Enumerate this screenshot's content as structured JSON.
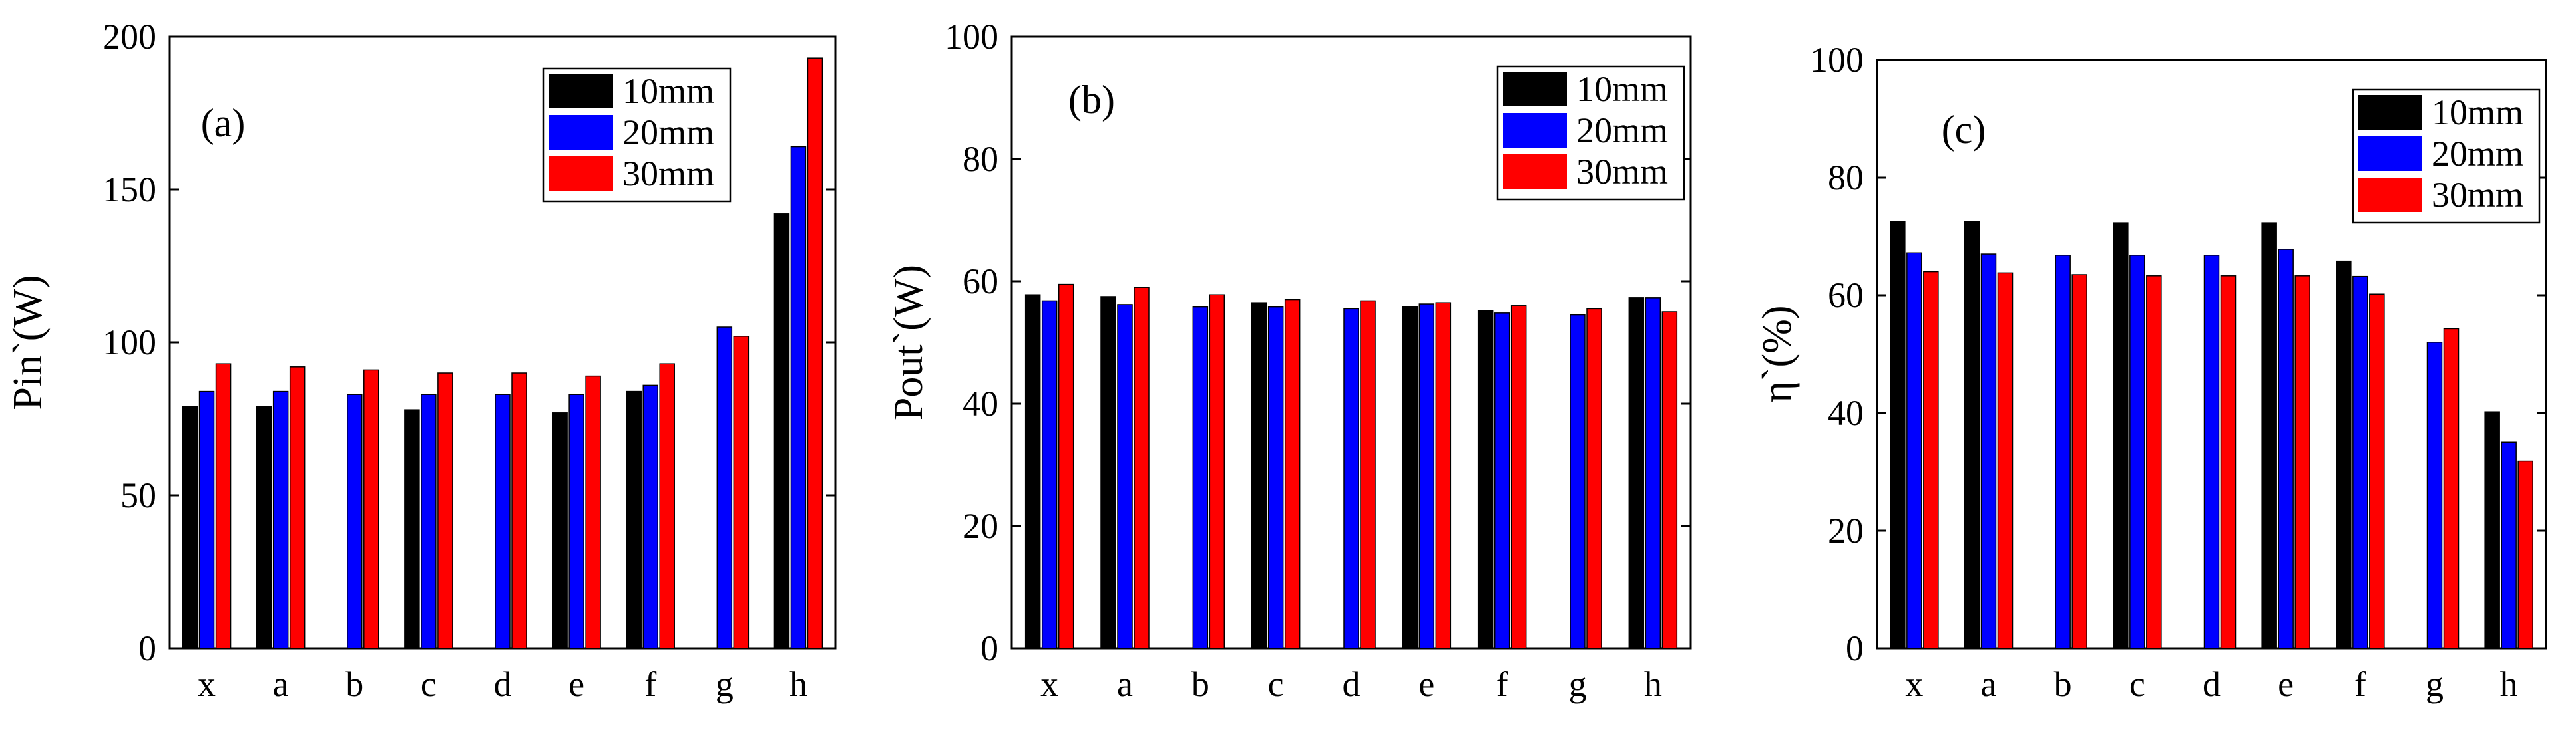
{
  "chart_data": [
    {
      "type": "bar",
      "panel_label": "(a)",
      "ylabel": "Pin`(W)",
      "ylim": [
        0,
        200
      ],
      "yticks": [
        0,
        50,
        100,
        150,
        200
      ],
      "categories": [
        "x",
        "a",
        "b",
        "c",
        "d",
        "e",
        "f",
        "g",
        "h"
      ],
      "series": [
        {
          "name": "10mm",
          "color": "#000000",
          "values": [
            79,
            79,
            null,
            78,
            null,
            77,
            84,
            null,
            142
          ]
        },
        {
          "name": "20mm",
          "color": "#0000ff",
          "values": [
            84,
            84,
            83,
            83,
            83,
            83,
            86,
            105,
            164
          ]
        },
        {
          "name": "30mm",
          "color": "#ff0000",
          "values": [
            93,
            92,
            91,
            90,
            90,
            89,
            93,
            102,
            193
          ]
        }
      ],
      "legend_position": "top-right",
      "legend": [
        "10mm",
        "20mm",
        "30mm"
      ]
    },
    {
      "type": "bar",
      "panel_label": "(b)",
      "ylabel": "Pout`(W)",
      "ylim": [
        0,
        100
      ],
      "yticks": [
        0,
        20,
        40,
        60,
        80,
        100
      ],
      "categories": [
        "x",
        "a",
        "b",
        "c",
        "d",
        "e",
        "f",
        "g",
        "h"
      ],
      "series": [
        {
          "name": "10mm",
          "color": "#000000",
          "values": [
            57.8,
            57.5,
            null,
            56.5,
            null,
            55.8,
            55.2,
            null,
            57.3
          ]
        },
        {
          "name": "20mm",
          "color": "#0000ff",
          "values": [
            56.8,
            56.2,
            55.8,
            55.8,
            55.5,
            56.3,
            54.8,
            54.5,
            57.3
          ]
        },
        {
          "name": "30mm",
          "color": "#ff0000",
          "values": [
            59.5,
            59.0,
            57.8,
            57.0,
            56.8,
            56.5,
            56.0,
            55.5,
            55.0
          ]
        }
      ],
      "legend_position": "top-right",
      "legend": [
        "10mm",
        "20mm",
        "30mm"
      ]
    },
    {
      "type": "bar",
      "panel_label": "(c)",
      "ylabel": "η`(%)",
      "ylim": [
        0,
        100
      ],
      "yticks": [
        0,
        20,
        40,
        60,
        80,
        100
      ],
      "categories": [
        "x",
        "a",
        "b",
        "c",
        "d",
        "e",
        "f",
        "g",
        "h"
      ],
      "series": [
        {
          "name": "10mm",
          "color": "#000000",
          "values": [
            72.5,
            72.5,
            null,
            72.3,
            null,
            72.3,
            65.8,
            null,
            40.2
          ]
        },
        {
          "name": "20mm",
          "color": "#0000ff",
          "values": [
            67.2,
            67.0,
            66.8,
            66.8,
            66.8,
            67.8,
            63.2,
            52.0,
            35.0
          ]
        },
        {
          "name": "30mm",
          "color": "#ff0000",
          "values": [
            64.0,
            63.8,
            63.5,
            63.3,
            63.3,
            63.3,
            60.2,
            54.3,
            31.8
          ]
        }
      ],
      "legend_position": "top-right",
      "legend": [
        "10mm",
        "20mm",
        "30mm"
      ]
    }
  ]
}
